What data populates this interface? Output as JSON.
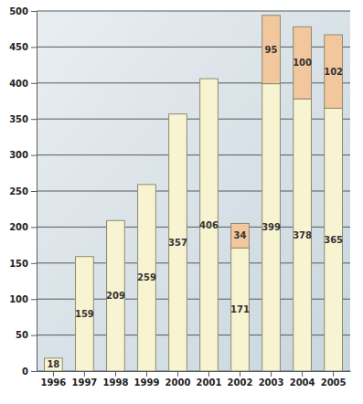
{
  "chart_data": {
    "type": "bar",
    "stacked": true,
    "data_labels": true,
    "grid": true,
    "categories": [
      "1996",
      "1997",
      "1998",
      "1999",
      "2000",
      "2001",
      "2002",
      "2003",
      "2004",
      "2005"
    ],
    "series": [
      {
        "color": "#f8f4d2",
        "values": [
          18,
          159,
          209,
          259,
          357,
          406,
          171,
          399,
          378,
          365
        ]
      },
      {
        "color": "#f3c79e",
        "values": [
          null,
          null,
          null,
          null,
          null,
          null,
          34,
          95,
          100,
          102
        ]
      }
    ],
    "ylim": [
      0,
      500
    ],
    "yticks": [
      0,
      50,
      100,
      150,
      200,
      250,
      300,
      350,
      400,
      450,
      500
    ]
  }
}
